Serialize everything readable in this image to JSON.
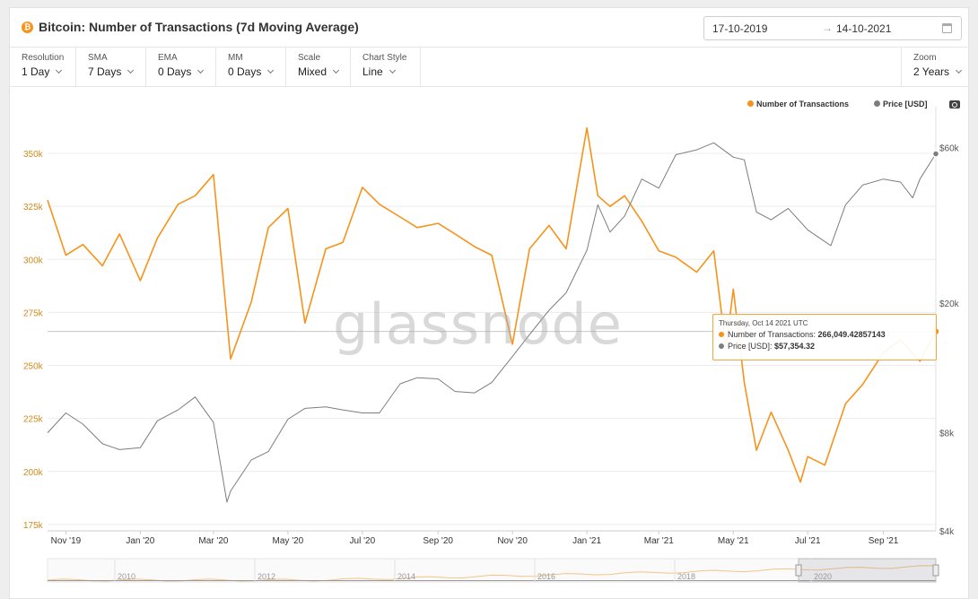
{
  "header": {
    "coin_symbol": "₿",
    "title": "Bitcoin: Number of Transactions (7d Moving Average)",
    "date_start": "17-10-2019",
    "date_arrow": "→",
    "date_end": "14-10-2021"
  },
  "controls": [
    {
      "id": "resolution",
      "label": "Resolution",
      "value": "1 Day"
    },
    {
      "id": "sma",
      "label": "SMA",
      "value": "7 Days"
    },
    {
      "id": "ema",
      "label": "EMA",
      "value": "0 Days"
    },
    {
      "id": "mm",
      "label": "MM",
      "value": "0 Days"
    },
    {
      "id": "scale",
      "label": "Scale",
      "value": "Mixed"
    },
    {
      "id": "chart-style",
      "label": "Chart Style",
      "value": "Line"
    }
  ],
  "zoom": {
    "label": "Zoom",
    "value": "2 Years"
  },
  "legend": {
    "tx_label": "Number of Transactions",
    "price_label": "Price [USD]"
  },
  "colors": {
    "tx": "#f7931a",
    "price": "#7d7d7d",
    "grid": "#ececec"
  },
  "watermark": "glassnode",
  "tooltip": {
    "date": "Thursday, Oct 14 2021 UTC",
    "tx_label": "Number of Transactions: ",
    "tx_value": "266,049.42857143",
    "price_label": "Price [USD]: ",
    "price_value": "$57,354.32"
  },
  "chart_data": {
    "type": "line",
    "title": "Bitcoin: Number of Transactions (7d Moving Average)",
    "y_left": {
      "ticks": [
        175000,
        200000,
        225000,
        250000,
        275000,
        300000,
        325000,
        350000
      ],
      "tick_labels": [
        "175k",
        "200k",
        "225k",
        "250k",
        "275k",
        "300k",
        "325k",
        "350k"
      ],
      "range": [
        172000,
        372000
      ]
    },
    "y_right": {
      "scale": "log",
      "ticks": [
        4000,
        8000,
        20000,
        60000
      ],
      "tick_labels": [
        "$4k",
        "$8k",
        "$20k",
        "$60k"
      ],
      "range": [
        4000,
        80000
      ]
    },
    "x_tick_labels": [
      "Nov '19",
      "Jan '20",
      "Mar '20",
      "May '20",
      "Jul '20",
      "Sep '20",
      "Nov '20",
      "Jan '21",
      "Mar '21",
      "May '21",
      "Jul '21",
      "Sep '21"
    ],
    "grid": true,
    "legend_position": "top-right",
    "series": [
      {
        "name": "Number of Transactions",
        "axis": "left",
        "x": [
          "2019-10-17",
          "2019-11-01",
          "2019-11-15",
          "2019-12-01",
          "2019-12-15",
          "2020-01-01",
          "2020-01-15",
          "2020-02-01",
          "2020-02-15",
          "2020-03-01",
          "2020-03-15",
          "2020-04-01",
          "2020-04-15",
          "2020-05-01",
          "2020-05-15",
          "2020-06-01",
          "2020-06-15",
          "2020-07-01",
          "2020-07-15",
          "2020-08-01",
          "2020-08-15",
          "2020-09-01",
          "2020-09-15",
          "2020-10-01",
          "2020-10-15",
          "2020-11-01",
          "2020-11-15",
          "2020-12-01",
          "2020-12-15",
          "2021-01-01",
          "2021-01-10",
          "2021-01-20",
          "2021-02-01",
          "2021-02-15",
          "2021-03-01",
          "2021-03-15",
          "2021-04-01",
          "2021-04-15",
          "2021-04-25",
          "2021-05-01",
          "2021-05-10",
          "2021-05-20",
          "2021-06-01",
          "2021-06-15",
          "2021-06-25",
          "2021-07-01",
          "2021-07-15",
          "2021-08-01",
          "2021-08-15",
          "2021-09-01",
          "2021-09-15",
          "2021-10-01",
          "2021-10-14"
        ],
        "values": [
          328000,
          302000,
          307000,
          297000,
          312000,
          290000,
          310000,
          326000,
          330000,
          340000,
          253000,
          280000,
          315000,
          324000,
          270000,
          305000,
          308000,
          334000,
          326000,
          320000,
          315000,
          317000,
          312000,
          306000,
          302000,
          260000,
          305000,
          316000,
          305000,
          362000,
          330000,
          325000,
          330000,
          318000,
          304000,
          301000,
          294000,
          304000,
          258000,
          286000,
          242000,
          210000,
          228000,
          210000,
          195000,
          207000,
          203000,
          232000,
          241000,
          256000,
          262000,
          252000,
          266049
        ]
      },
      {
        "name": "Price [USD]",
        "axis": "right",
        "x": [
          "2019-10-17",
          "2019-11-01",
          "2019-11-15",
          "2019-12-01",
          "2019-12-15",
          "2020-01-01",
          "2020-01-15",
          "2020-02-01",
          "2020-02-15",
          "2020-03-01",
          "2020-03-12",
          "2020-03-15",
          "2020-04-01",
          "2020-04-15",
          "2020-05-01",
          "2020-05-15",
          "2020-06-01",
          "2020-06-15",
          "2020-07-01",
          "2020-07-15",
          "2020-08-01",
          "2020-08-15",
          "2020-09-01",
          "2020-09-15",
          "2020-10-01",
          "2020-10-15",
          "2020-11-01",
          "2020-11-15",
          "2020-12-01",
          "2020-12-15",
          "2021-01-01",
          "2021-01-10",
          "2021-01-20",
          "2021-02-01",
          "2021-02-15",
          "2021-03-01",
          "2021-03-15",
          "2021-04-01",
          "2021-04-15",
          "2021-05-01",
          "2021-05-10",
          "2021-05-20",
          "2021-06-01",
          "2021-06-15",
          "2021-07-01",
          "2021-07-20",
          "2021-08-01",
          "2021-08-15",
          "2021-09-01",
          "2021-09-15",
          "2021-09-25",
          "2021-10-01",
          "2021-10-14"
        ],
        "values": [
          8000,
          9200,
          8500,
          7400,
          7100,
          7200,
          8700,
          9400,
          10300,
          8600,
          4900,
          5300,
          6600,
          7000,
          8800,
          9500,
          9600,
          9400,
          9200,
          9200,
          11300,
          11800,
          11700,
          10700,
          10600,
          11400,
          13700,
          16000,
          19000,
          21500,
          29000,
          40000,
          33000,
          37000,
          48000,
          45000,
          57000,
          59000,
          62000,
          56000,
          55000,
          38000,
          36000,
          39000,
          33500,
          30000,
          40000,
          46000,
          48000,
          47000,
          42000,
          48000,
          57354
        ]
      }
    ]
  },
  "navigator": {
    "year_labels": [
      "2010",
      "2012",
      "2014",
      "2016",
      "2018",
      "2020"
    ]
  }
}
